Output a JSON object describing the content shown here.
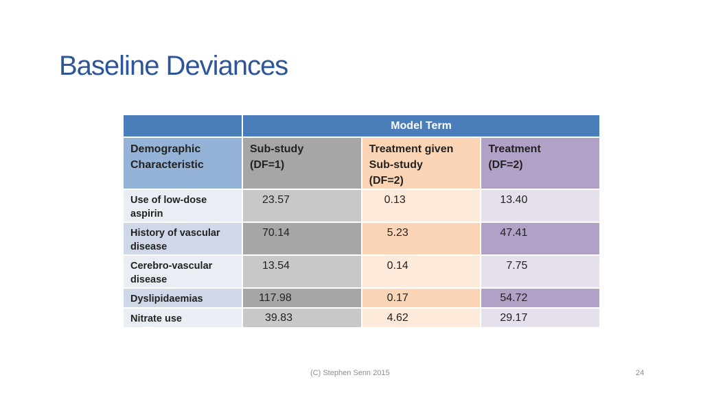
{
  "slide": {
    "title": "Baseline Deviances",
    "footer": "(C) Stephen Senn 2015",
    "page_number": "24"
  },
  "table": {
    "group_header": "Model Term",
    "columns": [
      {
        "line1": "Demographic",
        "line2": "Characteristic",
        "line3": ""
      },
      {
        "line1": "Sub-study",
        "line2": "(DF=1)",
        "line3": ""
      },
      {
        "line1": "Treatment given",
        "line2": "Sub-study",
        "line3": "(DF=2)"
      },
      {
        "line1": "Treatment",
        "line2": "(DF=2)",
        "line3": ""
      }
    ],
    "rows": [
      {
        "label_line1": "Use of low-dose",
        "label_line2": "aspirin",
        "substudy": "23.57",
        "treatment_given_substudy": "0.13",
        "treatment": "13.40"
      },
      {
        "label_line1": "History of vascular",
        "label_line2": "disease",
        "substudy": "70.14",
        "treatment_given_substudy": "5.23",
        "treatment": "47.41"
      },
      {
        "label_line1": "Cerebro-vascular",
        "label_line2": "disease",
        "substudy": "13.54",
        "treatment_given_substudy": "0.14",
        "treatment": "7.75"
      },
      {
        "label_line1": "Dyslipidaemias",
        "label_line2": "",
        "substudy": "117.98",
        "treatment_given_substudy": "0.17",
        "treatment": "54.72"
      },
      {
        "label_line1": "Nitrate use",
        "label_line2": "",
        "substudy": "39.83",
        "treatment_given_substudy": "4.62",
        "treatment": "29.17"
      }
    ]
  },
  "colors": {
    "title": "#2e5597",
    "header_blue": "#4a7ebb",
    "label_header": "#95b3d7",
    "label_dark": "#d0d8e8",
    "label_light": "#e9edf4",
    "substudy_header": "#a6a6a6",
    "substudy_dark": "#a6a6a6",
    "substudy_light": "#c8c8c8",
    "tgs_header": "#fbd5b5",
    "tgs_dark": "#fbd5b5",
    "tgs_light": "#fdeadb",
    "treat_header": "#b2a1c7",
    "treat_dark": "#b2a1c7",
    "treat_light": "#e5e0ec"
  }
}
